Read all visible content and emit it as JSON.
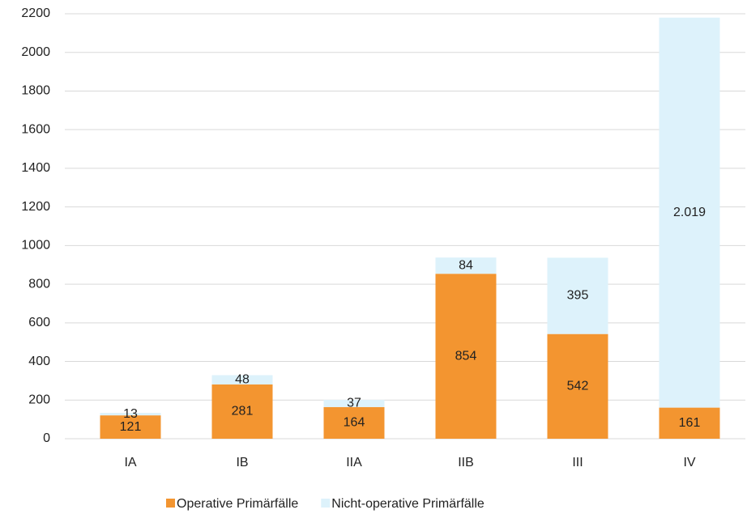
{
  "chart_data": {
    "type": "stacked_bar",
    "categories": [
      "IA",
      "IB",
      "IIA",
      "IIB",
      "III",
      "IV"
    ],
    "series": [
      {
        "name": "Operative Primärfälle",
        "color": "#f39530",
        "values": [
          121,
          281,
          164,
          854,
          542,
          161
        ]
      },
      {
        "name": "Nicht-operative Primärfälle",
        "color": "#ddf2fb",
        "values": [
          13,
          48,
          37,
          84,
          395,
          2019
        ],
        "value_labels": [
          "13",
          "48",
          "37",
          "84",
          "395",
          "2.019"
        ]
      }
    ],
    "ylim": [
      0,
      2200
    ],
    "yticks": [
      0,
      200,
      400,
      600,
      800,
      1000,
      1200,
      1400,
      1600,
      1800,
      2000,
      2200
    ],
    "grid": true,
    "legend": "bottom"
  }
}
